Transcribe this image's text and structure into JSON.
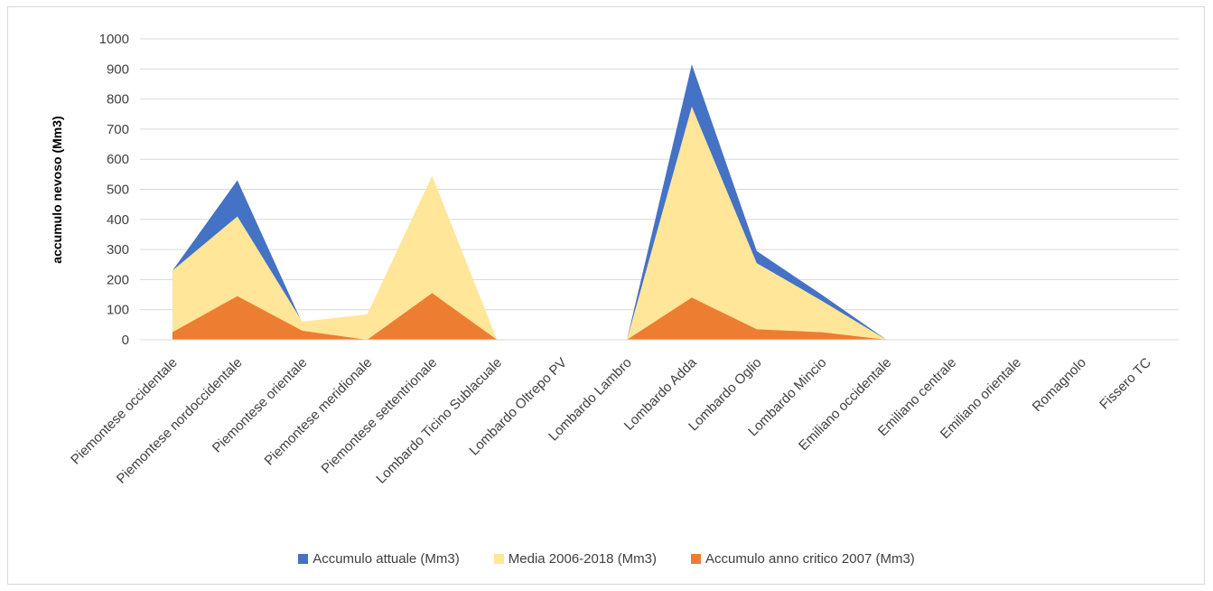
{
  "chart_data": {
    "type": "area",
    "title": "",
    "ylabel": "accumulo nevoso (Mm3)",
    "xlabel": "",
    "ylim": [
      0,
      1000
    ],
    "yticks": [
      0,
      100,
      200,
      300,
      400,
      500,
      600,
      700,
      800,
      900,
      1000
    ],
    "grid": true,
    "legend_position": "bottom",
    "categories": [
      "Piemontese occidentale",
      "Piemontese nordoccidentale",
      "Piemontese orientale",
      "Piemontese meridionale",
      "Piemontese settentrionale",
      "Lombardo Ticino Sublacuale",
      "Lombardo Oltrepo PV",
      "Lombardo Lambro",
      "Lombardo Adda",
      "Lombardo Oglio",
      "Lombardo Mincio",
      "Emiliano occidentale",
      "Emiliano centrale",
      "Emiliano orientale",
      "Romagnolo",
      "Fissero TC"
    ],
    "series": [
      {
        "name": "Accumulo attuale (Mm3)",
        "color": "#4472c4",
        "values": [
          230,
          530,
          55,
          0,
          0,
          0,
          0,
          0,
          915,
          295,
          150,
          0,
          null,
          null,
          null,
          null
        ]
      },
      {
        "name": "Media 2006-2018 (Mm3)",
        "color": "#ffe699",
        "values": [
          230,
          410,
          60,
          85,
          545,
          0,
          0,
          0,
          775,
          255,
          130,
          0,
          null,
          null,
          null,
          null
        ]
      },
      {
        "name": "Accumulo anno critico 2007 (Mm3)",
        "color": "#ed7d31",
        "values": [
          25,
          145,
          30,
          0,
          155,
          0,
          0,
          0,
          140,
          35,
          25,
          0,
          null,
          null,
          null,
          null
        ]
      }
    ]
  }
}
